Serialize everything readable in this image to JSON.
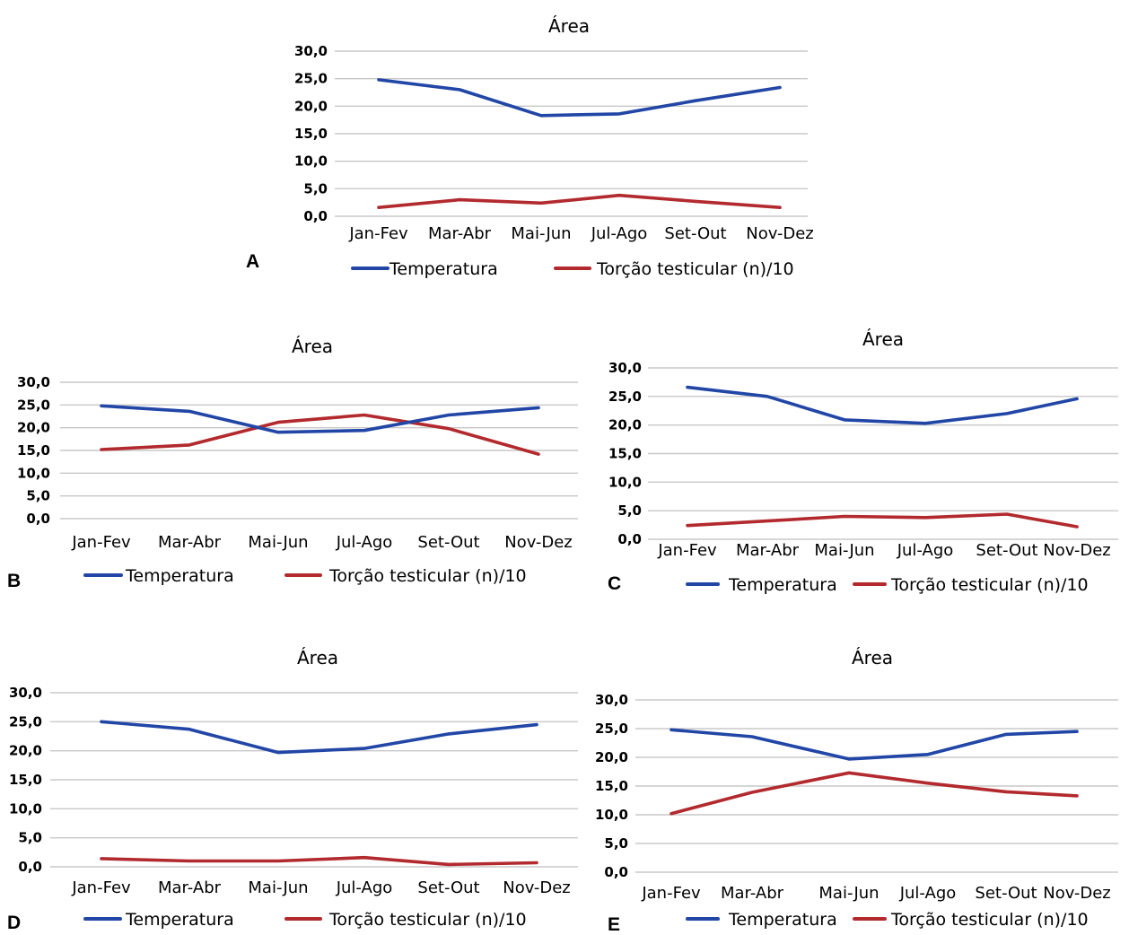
{
  "colors": {
    "temperatura": "#2146a6",
    "torcao": "#b22a2e",
    "grid": "#c8c8c8"
  },
  "chart_data": [
    {
      "panel": "A",
      "type": "line",
      "title": "Área",
      "categories": [
        "Jan-Fev",
        "Mar-Abr",
        "Mai-Jun",
        "Jul-Ago",
        "Set-Out",
        "Nov-Dez"
      ],
      "y_ticks": [
        "30,0",
        "25,0",
        "20,0",
        "15,0",
        "10,0",
        "5,0",
        "0,0"
      ],
      "ylim": [
        0,
        30
      ],
      "grid": true,
      "legend": "bottom",
      "series": [
        {
          "name": "Temperatura",
          "color": "#2146a6",
          "values": [
            24.8,
            23.0,
            18.3,
            18.6,
            21.0,
            23.4
          ]
        },
        {
          "name": "Torção testicular (n)/10",
          "color": "#b22a2e",
          "values": [
            1.6,
            3.0,
            2.4,
            3.8,
            2.7,
            1.6
          ]
        }
      ]
    },
    {
      "panel": "B",
      "type": "line",
      "title": "Área",
      "categories": [
        "Jan-Fev",
        "Mar-Abr",
        "Mai-Jun",
        "Jul-Ago",
        "Set-Out",
        "Nov-Dez"
      ],
      "y_ticks": [
        "30,0",
        "25,0",
        "20,0",
        "15,0",
        "10,0",
        "5,0",
        "0,0"
      ],
      "ylim": [
        0,
        30
      ],
      "grid": true,
      "legend": "bottom",
      "series": [
        {
          "name": "Temperatura",
          "color": "#2146a6",
          "values": [
            24.8,
            23.6,
            19.0,
            19.4,
            22.8,
            24.4
          ]
        },
        {
          "name": "Torção testicular (n)/10",
          "color": "#b22a2e",
          "values": [
            15.2,
            16.2,
            21.2,
            22.8,
            19.8,
            14.2
          ]
        }
      ]
    },
    {
      "panel": "C",
      "type": "line",
      "title": "Área",
      "categories": [
        "Jan-Fev",
        "Mar-Abr",
        "Mai-Jun",
        "Jul-Ago",
        "Set-Out",
        "Nov-Dez"
      ],
      "y_ticks": [
        "30,0",
        "25,0",
        "20,0",
        "15,0",
        "10,0",
        "5,0",
        "0,0"
      ],
      "ylim": [
        0,
        30
      ],
      "grid": true,
      "legend": "bottom",
      "series": [
        {
          "name": "Temperatura",
          "color": "#2146a6",
          "values": [
            26.6,
            25.0,
            20.9,
            20.3,
            22.0,
            24.6
          ]
        },
        {
          "name": "Torção testicular (n)/10",
          "color": "#b22a2e",
          "values": [
            2.4,
            3.2,
            4.0,
            3.8,
            4.4,
            2.2
          ]
        }
      ]
    },
    {
      "panel": "D",
      "type": "line",
      "title": "Área",
      "categories": [
        "Jan-Fev",
        "Mar-Abr",
        "Mai-Jun",
        "Jul-Ago",
        "Set-Out",
        "Nov-Dez"
      ],
      "y_ticks": [
        "30,0",
        "25,0",
        "20,0",
        "15,0",
        "10,0",
        "5,0",
        "0,0"
      ],
      "ylim": [
        0,
        30
      ],
      "grid": true,
      "legend": "bottom",
      "series": [
        {
          "name": "Temperatura",
          "color": "#2146a6",
          "values": [
            25.0,
            23.7,
            19.7,
            20.4,
            22.9,
            24.5
          ]
        },
        {
          "name": "Torção testicular (n)/10",
          "color": "#b22a2e",
          "values": [
            1.4,
            1.0,
            1.0,
            1.6,
            0.4,
            0.7
          ]
        }
      ]
    },
    {
      "panel": "E",
      "type": "line",
      "title": "Área",
      "categories": [
        "Jan-Fev",
        "Mar-Abr",
        "Mai-Jun",
        "Jul-Ago",
        "Set-Out",
        "Nov-Dez"
      ],
      "y_ticks": [
        "30,0",
        "25,0",
        "20,0",
        "15,0",
        "10,0",
        "5,0",
        "0,0"
      ],
      "ylim": [
        0,
        30
      ],
      "grid": true,
      "legend": "bottom",
      "series": [
        {
          "name": "Temperatura",
          "color": "#2146a6",
          "values": [
            24.8,
            23.6,
            19.7,
            20.5,
            24.0,
            24.5
          ]
        },
        {
          "name": "Torção testicular (n)/10",
          "color": "#b22a2e",
          "values": [
            10.2,
            13.9,
            17.3,
            15.5,
            14.0,
            13.3
          ]
        }
      ]
    }
  ]
}
